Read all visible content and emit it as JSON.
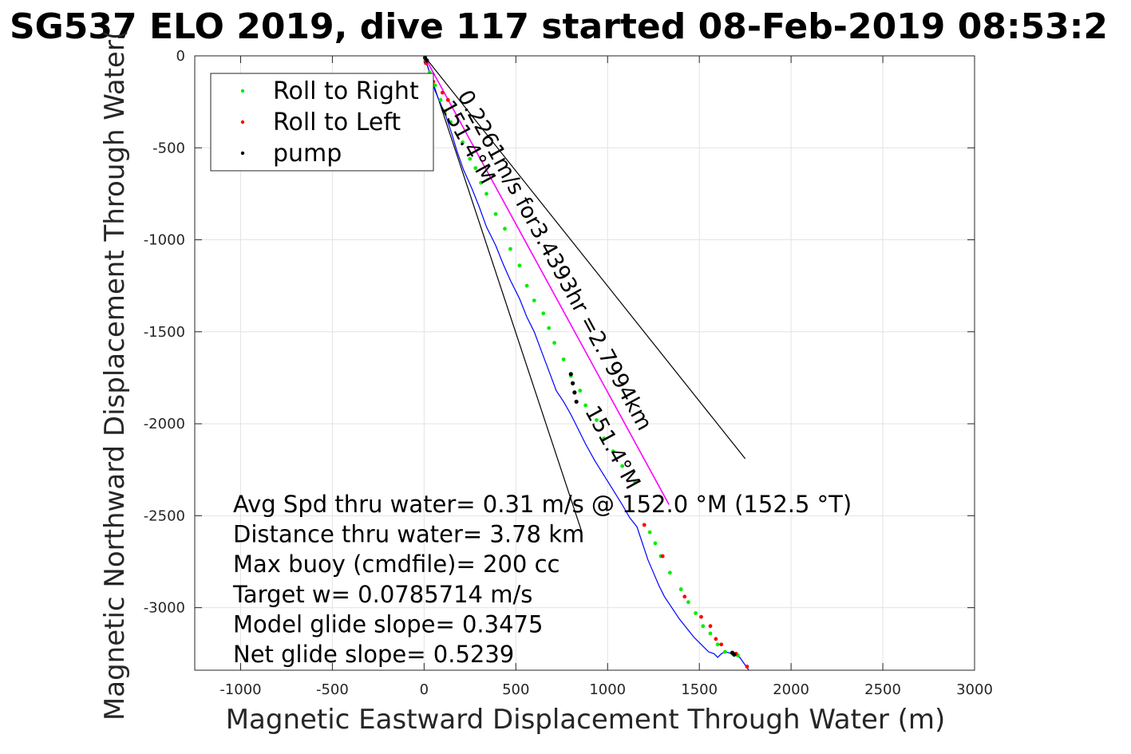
{
  "chart_data": {
    "type": "line",
    "title": "SG537 ELO 2019, dive 117 started 08-Feb-2019 08:53:2",
    "xlabel": "Magnetic Eastward Displacement Through Water (m)",
    "ylabel": "Magnetic Northward Displacement Through Water(",
    "xlim": [
      -1250,
      3000
    ],
    "ylim": [
      -3340,
      0
    ],
    "xticks": [
      -1000,
      -500,
      0,
      500,
      1000,
      1500,
      2000,
      2500,
      3000
    ],
    "yticks": [
      0,
      -500,
      -1000,
      -1500,
      -2000,
      -2500,
      -3000
    ],
    "xtick_labels": [
      "-1000",
      "-500",
      "0",
      "500",
      "1000",
      "1500",
      "2000",
      "2500",
      "3000"
    ],
    "ytick_labels": [
      "0",
      "-500",
      "-1000",
      "-1500",
      "-2000",
      "-2500",
      "-3000"
    ],
    "grid": true,
    "legend": {
      "placement": "top-left",
      "entries": [
        {
          "label": "Roll to Right",
          "color": "#00ee00"
        },
        {
          "label": "Roll to Left",
          "color": "#ff0000"
        },
        {
          "label": "pump",
          "color": "#000000"
        }
      ]
    },
    "series": [
      {
        "kind": "track",
        "color": "#0000ff",
        "x": [
          0,
          20,
          40,
          60,
          90,
          120,
          150,
          180,
          215,
          260,
          300,
          340,
          390,
          430,
          470,
          520,
          560,
          600,
          630,
          660,
          690,
          720,
          760,
          800,
          840,
          880,
          930,
          980,
          1030,
          1080,
          1120,
          1160,
          1180,
          1200,
          1220,
          1250,
          1280,
          1310,
          1350,
          1390,
          1430,
          1470,
          1510,
          1550,
          1580,
          1600,
          1620,
          1640,
          1680,
          1720,
          1770
        ],
        "y": [
          0,
          -60,
          -120,
          -190,
          -260,
          -330,
          -420,
          -520,
          -620,
          -720,
          -820,
          -930,
          -1030,
          -1130,
          -1220,
          -1320,
          -1420,
          -1500,
          -1580,
          -1660,
          -1740,
          -1820,
          -1880,
          -1950,
          -2030,
          -2110,
          -2200,
          -2280,
          -2360,
          -2440,
          -2510,
          -2560,
          -2620,
          -2680,
          -2740,
          -2810,
          -2880,
          -2940,
          -3000,
          -3060,
          -3110,
          -3160,
          -3200,
          -3240,
          -3250,
          -3270,
          -3250,
          -3240,
          -3250,
          -3270,
          -3340
        ]
      },
      {
        "kind": "heading",
        "color": "#ff00ff",
        "x": [
          0,
          1335
        ],
        "y": [
          0,
          -2440
        ]
      }
    ],
    "roll_right_points": {
      "x": [
        30,
        60,
        90,
        115,
        145,
        210,
        250,
        280,
        310,
        340,
        390,
        440,
        470,
        520,
        560,
        600,
        650,
        680,
        710,
        760,
        800,
        850,
        880,
        940,
        980,
        1030,
        1080,
        1150,
        1230,
        1260,
        1290,
        1340,
        1400,
        1440,
        1480,
        1520,
        1560,
        1600,
        1640,
        1680,
        1710
      ],
      "y": [
        -90,
        -160,
        -240,
        -300,
        -360,
        -470,
        -560,
        -610,
        -690,
        -750,
        -860,
        -940,
        -1050,
        -1140,
        -1250,
        -1330,
        -1400,
        -1480,
        -1560,
        -1650,
        -1740,
        -1820,
        -1900,
        -1980,
        -2080,
        -2150,
        -2230,
        -2320,
        -2590,
        -2650,
        -2720,
        -2810,
        -2900,
        -2970,
        -3030,
        -3100,
        -3140,
        -3200,
        -3240,
        -3250,
        -3260
      ]
    },
    "roll_left_points": {
      "x": [
        10,
        50,
        100,
        130,
        1200,
        1300,
        1420,
        1510,
        1560,
        1590,
        1620,
        1700,
        1760
      ],
      "y": [
        -40,
        -140,
        -200,
        -240,
        -2550,
        -2720,
        -2940,
        -3050,
        -3100,
        -3170,
        -3200,
        -3250,
        -3320
      ]
    },
    "pump_points": {
      "x": [
        5,
        15,
        800,
        810,
        820,
        830,
        1680,
        1690
      ],
      "y": [
        -10,
        -25,
        -1730,
        -1780,
        -1830,
        -1880,
        -3245,
        -3255
      ]
    },
    "reference_lines": [
      {
        "x": [
          0,
          1750
        ],
        "y": [
          0,
          -2190
        ]
      },
      {
        "x": [
          0,
          860
        ],
        "y": [
          0,
          -2590
        ]
      }
    ],
    "annotations": [
      {
        "text": "0.2261m/s for3.4393hr =2.7994km",
        "x": 180,
        "y": -215,
        "angle": 61.5
      },
      {
        "text": "151.4°M",
        "x": 85,
        "y": -270,
        "angle": 61.5
      },
      {
        "text": "151.4°M",
        "x": 875,
        "y": -1930,
        "angle": 61.5
      }
    ],
    "info_text": [
      "Avg Spd thru water=  0.31 m/s @ 152.0 °M (152.5 °T)",
      "Distance thru water=  3.78 km",
      "Max buoy (cmdfile)= 200 cc",
      "Target w= 0.0785714 m/s",
      "Model glide slope= 0.3475",
      "Net glide slope= 0.5239"
    ]
  }
}
